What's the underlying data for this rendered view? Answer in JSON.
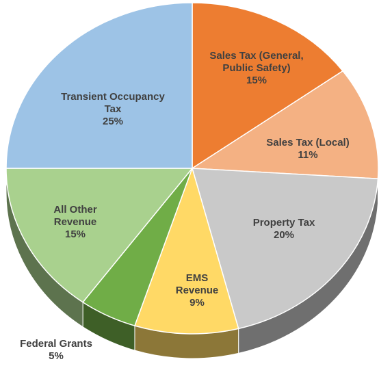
{
  "chart_data": {
    "type": "pie",
    "categories": [
      "Sales Tax (General, Public Safety)",
      "Sales Tax (Local)",
      "Property Tax",
      "EMS Revenue",
      "Federal Grants",
      "All Other Revenue",
      "Transient Occupancy Tax"
    ],
    "values": [
      15,
      11,
      20,
      9,
      5,
      15,
      25
    ],
    "value_labels": [
      "15%",
      "11%",
      "20%",
      "9%",
      "5%",
      "15%",
      "25%"
    ],
    "colors": [
      "#ed7d31",
      "#f4b183",
      "#c9c9c9",
      "#ffd966",
      "#70ad47",
      "#a9d18e",
      "#9dc3e6"
    ]
  }
}
